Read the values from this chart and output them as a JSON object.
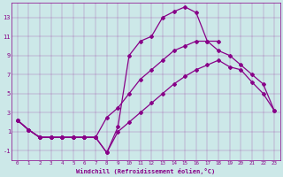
{
  "bg_color": "#cce8e8",
  "line_color": "#880088",
  "xlabel": "Windchill (Refroidissement éolien,°C)",
  "xlim_min": -0.5,
  "xlim_max": 23.5,
  "ylim_min": -2.0,
  "ylim_max": 14.5,
  "xticks": [
    0,
    1,
    2,
    3,
    4,
    5,
    6,
    7,
    8,
    9,
    10,
    11,
    12,
    13,
    14,
    15,
    16,
    17,
    18,
    19,
    20,
    21,
    22,
    23
  ],
  "yticks": [
    -1,
    1,
    3,
    5,
    7,
    9,
    11,
    13
  ],
  "line1_x": [
    0,
    1,
    2,
    3,
    4,
    5,
    6,
    7,
    8,
    9,
    10,
    11,
    12,
    13,
    14,
    15,
    16,
    17,
    18,
    19,
    20,
    21,
    22,
    23
  ],
  "line1_y": [
    2.2,
    1.2,
    0.4,
    0.4,
    0.4,
    0.4,
    0.4,
    0.4,
    -1.2,
    1.0,
    2.0,
    3.0,
    4.0,
    5.0,
    6.0,
    6.8,
    7.5,
    8.0,
    8.5,
    7.8,
    7.5,
    6.2,
    5.0,
    3.2
  ],
  "line2_x": [
    0,
    1,
    2,
    3,
    4,
    5,
    6,
    7,
    8,
    9,
    10,
    11,
    12,
    13,
    14,
    15,
    16,
    17,
    18,
    19,
    20,
    21,
    22,
    23
  ],
  "line2_y": [
    2.2,
    1.2,
    0.4,
    0.4,
    0.4,
    0.4,
    0.4,
    0.4,
    2.5,
    3.5,
    5.0,
    6.5,
    7.5,
    8.5,
    9.5,
    10.0,
    10.5,
    10.5,
    9.5,
    9.0,
    8.0,
    7.0,
    6.0,
    3.2
  ],
  "line3_x": [
    0,
    1,
    2,
    3,
    4,
    5,
    6,
    7,
    8,
    9,
    10,
    11,
    12,
    13,
    14,
    15,
    16,
    17,
    18,
    19,
    20,
    21,
    22,
    23
  ],
  "line3_y": [
    2.2,
    1.2,
    0.4,
    0.4,
    0.4,
    0.4,
    0.4,
    0.4,
    -1.2,
    1.5,
    9.0,
    10.5,
    11.0,
    13.0,
    13.6,
    14.1,
    13.5,
    10.5,
    10.5,
    null,
    null,
    null,
    null,
    null
  ],
  "line4_x": [
    0,
    1,
    2,
    3,
    4,
    5,
    6,
    7
  ],
  "line4_y": [
    2.2,
    1.2,
    0.4,
    0.4,
    0.4,
    0.4,
    0.4,
    0.4
  ]
}
